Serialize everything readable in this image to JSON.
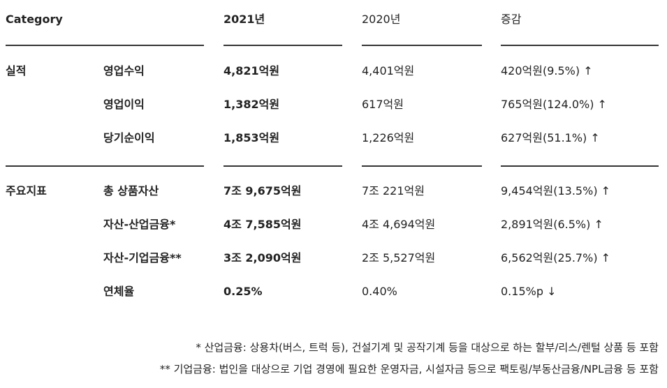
{
  "header": [
    "Category",
    "2021년",
    "2020년",
    "증감"
  ],
  "groups": [
    {
      "label": "실적",
      "rows": [
        [
          "영업수익",
          "4,821억원",
          "4,401억원",
          "420억원(9.5%) ↑"
        ],
        [
          "영업이익",
          "1,382억원",
          "617억원",
          "765억원(124.0%) ↑"
        ],
        [
          "당기순이익",
          "1,853억원",
          "1,226억원",
          "627억원(51.1%) ↑"
        ]
      ]
    },
    {
      "label": "주요지표",
      "rows": [
        [
          "총 상품자산",
          "7조 9,675억원",
          "7조 221억원",
          "9,454억원(13.5%) ↑"
        ],
        [
          "자산-산업금융*",
          "4조 7,585억원",
          "4조 4,694억원",
          "2,891억원(6.5%) ↑"
        ],
        [
          "자산-기업금융**",
          "3조 2,090억원",
          "2조 5,527억원",
          "6,562억원(25.7%) ↑"
        ],
        [
          "연체율",
          "0.25%",
          "0.40%",
          "0.15%p ↓"
        ]
      ]
    }
  ],
  "footnotes": [
    "* 산업금융: 상용차(버스, 트럭 등), 건설기계 및 공작기계 등을 대상으로 하는 할부/리스/렌털 상품 등 포함",
    "** 기업금융: 법인을 대상으로 기업 경영에 필요한 운영자금, 시설자금 등으로 팩토링/부동산금융/NPL금융 등 포함"
  ]
}
